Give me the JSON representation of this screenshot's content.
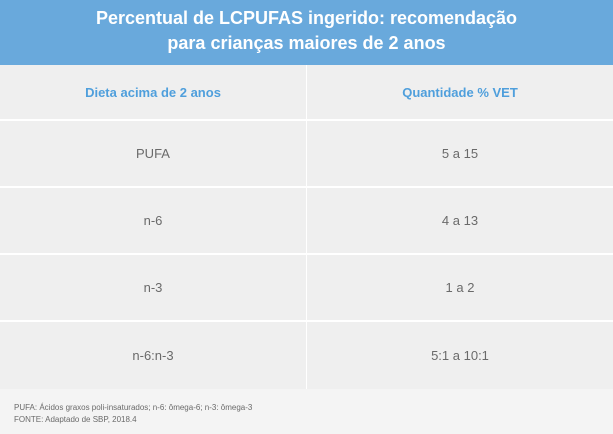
{
  "header": {
    "title_line1": "Percentual de LCPUFAS ingerido: recomendação",
    "title_line2": "para crianças maiores de 2 anos"
  },
  "table": {
    "columns": [
      "Dieta acima de 2 anos",
      "Quantidade % VET"
    ],
    "rows": [
      [
        "PUFA",
        "5 a 15"
      ],
      [
        "n-6",
        "4 a 13"
      ],
      [
        "n-3",
        "1 a 2"
      ],
      [
        "n-6:n-3",
        "5:1 a 10:1"
      ]
    ]
  },
  "footnotes": {
    "line1": "PUFA: Ácidos graxos poli-insaturados; n-6: ômega-6; n-3: ômega-3",
    "line2": "FONTE: Adaptado de SBP, 2018.4"
  },
  "colors": {
    "header_bg": "#69a9dc",
    "header_text": "#ffffff",
    "column_header_text": "#4f9fdc",
    "table_bg": "#efefef",
    "body_text": "#6a6a6a"
  }
}
